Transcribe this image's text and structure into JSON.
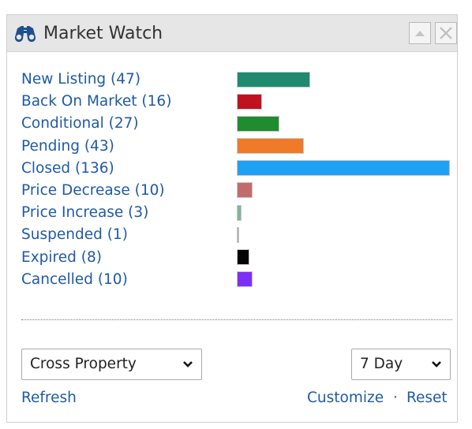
{
  "widget": {
    "title": "Market Watch",
    "icon": "binoculars-icon",
    "controls": [
      {
        "name": "collapse",
        "icon": "triangle-up-icon"
      },
      {
        "name": "close",
        "icon": "close-icon"
      }
    ]
  },
  "chart_data": {
    "type": "bar",
    "orientation": "horizontal",
    "categories": [
      "New Listing (47)",
      "Back On Market (16)",
      "Conditional (27)",
      "Pending (43)",
      "Closed (136)",
      "Price Decrease (10)",
      "Price Increase (3)",
      "Suspended (1)",
      "Expired (8)",
      "Cancelled (10)"
    ],
    "values": [
      47,
      16,
      27,
      43,
      136,
      10,
      3,
      1,
      8,
      10
    ],
    "colors": [
      "#1f8a70",
      "#c0111f",
      "#1f8c30",
      "#f07a27",
      "#1ea1f2",
      "#c26b6b",
      "#7fb59a",
      "#a8a8a8",
      "#050505",
      "#7b2ff7"
    ],
    "xlim": [
      0,
      136
    ],
    "grid": false
  },
  "filters": {
    "property": {
      "selected": "Cross Property"
    },
    "period": {
      "selected": "7 Day"
    }
  },
  "links": {
    "refresh": "Refresh",
    "customize": "Customize",
    "separator": "·",
    "reset": "Reset"
  }
}
